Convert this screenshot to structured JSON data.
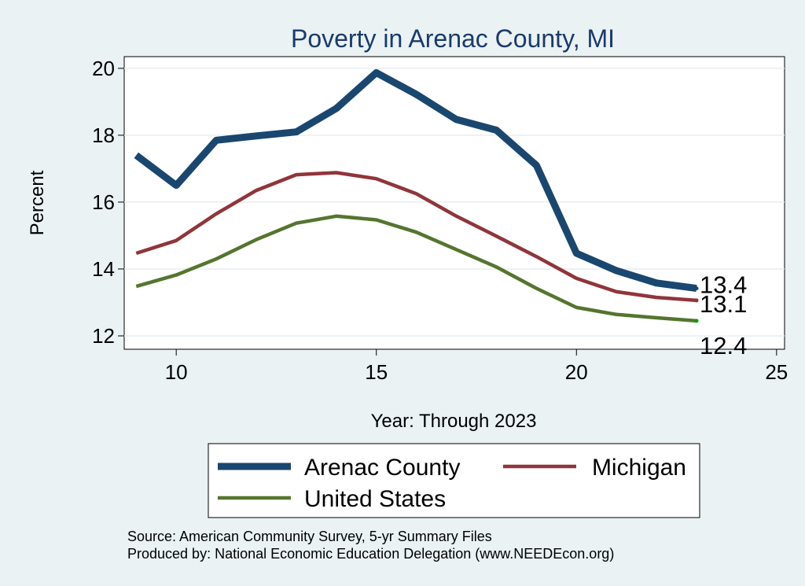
{
  "chart_data": {
    "type": "line",
    "title": "Poverty in Arenac County, MI",
    "xlabel": "Year: Through 2023",
    "ylabel": "Percent",
    "xlim": [
      8.7,
      25.2
    ],
    "ylim": [
      11.6,
      20.35
    ],
    "xticks": [
      "10",
      "15",
      "20",
      "25"
    ],
    "yticks": [
      "12",
      "14",
      "16",
      "18",
      "20"
    ],
    "x": [
      9,
      10,
      11,
      12,
      13,
      14,
      15,
      16,
      17,
      18,
      19,
      20,
      21,
      22,
      23
    ],
    "series": [
      {
        "name": "Arenac County",
        "color": "#1a476f",
        "values": [
          17.4,
          16.5,
          17.85,
          17.98,
          18.1,
          18.8,
          19.87,
          19.22,
          18.47,
          18.15,
          17.1,
          14.47,
          13.95,
          13.58,
          13.42
        ],
        "end_label": "13.4"
      },
      {
        "name": "Michigan",
        "color": "#90353b",
        "values": [
          14.47,
          14.85,
          15.65,
          16.35,
          16.82,
          16.88,
          16.7,
          16.25,
          15.58,
          14.98,
          14.37,
          13.72,
          13.32,
          13.15,
          13.06
        ],
        "end_label": "13.1"
      },
      {
        "name": "United States",
        "color": "#55752f",
        "values": [
          13.48,
          13.82,
          14.3,
          14.88,
          15.37,
          15.58,
          15.47,
          15.1,
          14.58,
          14.06,
          13.42,
          12.85,
          12.64,
          12.54,
          12.45
        ],
        "end_label": "12.4"
      }
    ],
    "legend": {
      "placement": "bottom"
    },
    "grid": true
  },
  "notes": {
    "source": "Source: American Community Survey, 5-yr Summary Files",
    "produced_by": "Produced by: National Economic Education Delegation (www.NEEDEcon.org)"
  }
}
